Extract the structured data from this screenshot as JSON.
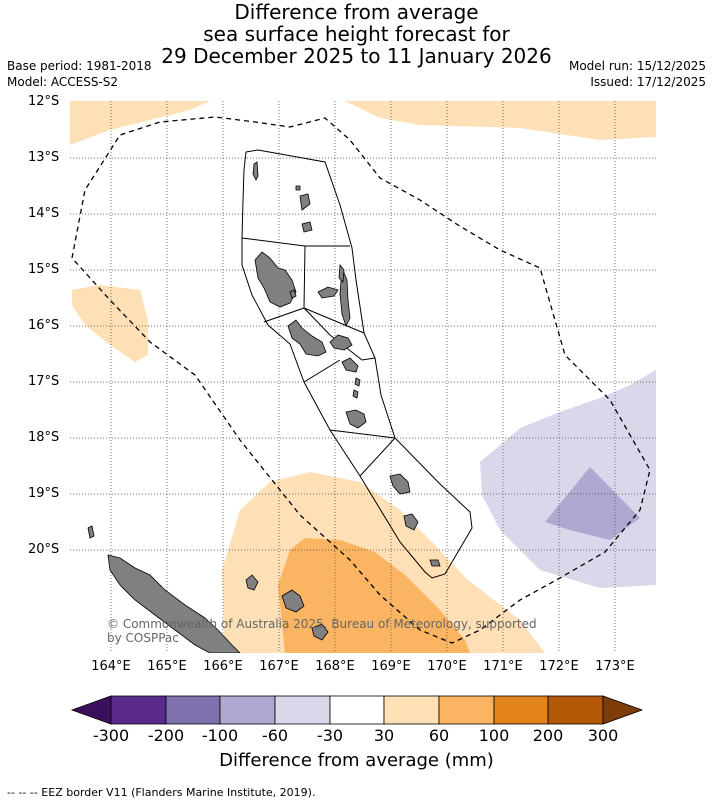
{
  "header": {
    "title_line1": "Difference from average",
    "title_line2": "sea surface height forecast for",
    "title_line3": "29 December 2025 to 11 January 2026",
    "base_period": "Base period: 1981-2018",
    "model": "Model: ACCESS-S2",
    "model_run": "Model run: 15/12/2025",
    "issued": "Issued: 17/12/2025"
  },
  "map": {
    "lat_labels": [
      "12°S",
      "13°S",
      "14°S",
      "15°S",
      "16°S",
      "17°S",
      "18°S",
      "19°S",
      "20°S"
    ],
    "lon_labels": [
      "164°E",
      "165°E",
      "166°E",
      "167°E",
      "168°E",
      "169°E",
      "170°E",
      "171°E",
      "172°E",
      "173°E"
    ],
    "copyright_line1": "© Commonwealth of Australia 2025, Bureau of Meteorology, supported",
    "copyright_line2": "by COSPPac"
  },
  "colorbar": {
    "ticks": [
      "-300",
      "-200",
      "-100",
      "-60",
      "-30",
      "30",
      "60",
      "100",
      "200",
      "300"
    ],
    "colors": [
      "#3b0f5c",
      "#5a2a8a",
      "#8070ae",
      "#afa8d0",
      "#d8d8ea",
      "#ffffff",
      "#fde0b5",
      "#fbb461",
      "#e2831b",
      "#b35806",
      "#7f3b08"
    ],
    "label": "Difference from average (mm)"
  },
  "footer": {
    "eez_note": "--  --  -- EEZ border V11 (Flanders Marine Institute, 2019)."
  }
}
